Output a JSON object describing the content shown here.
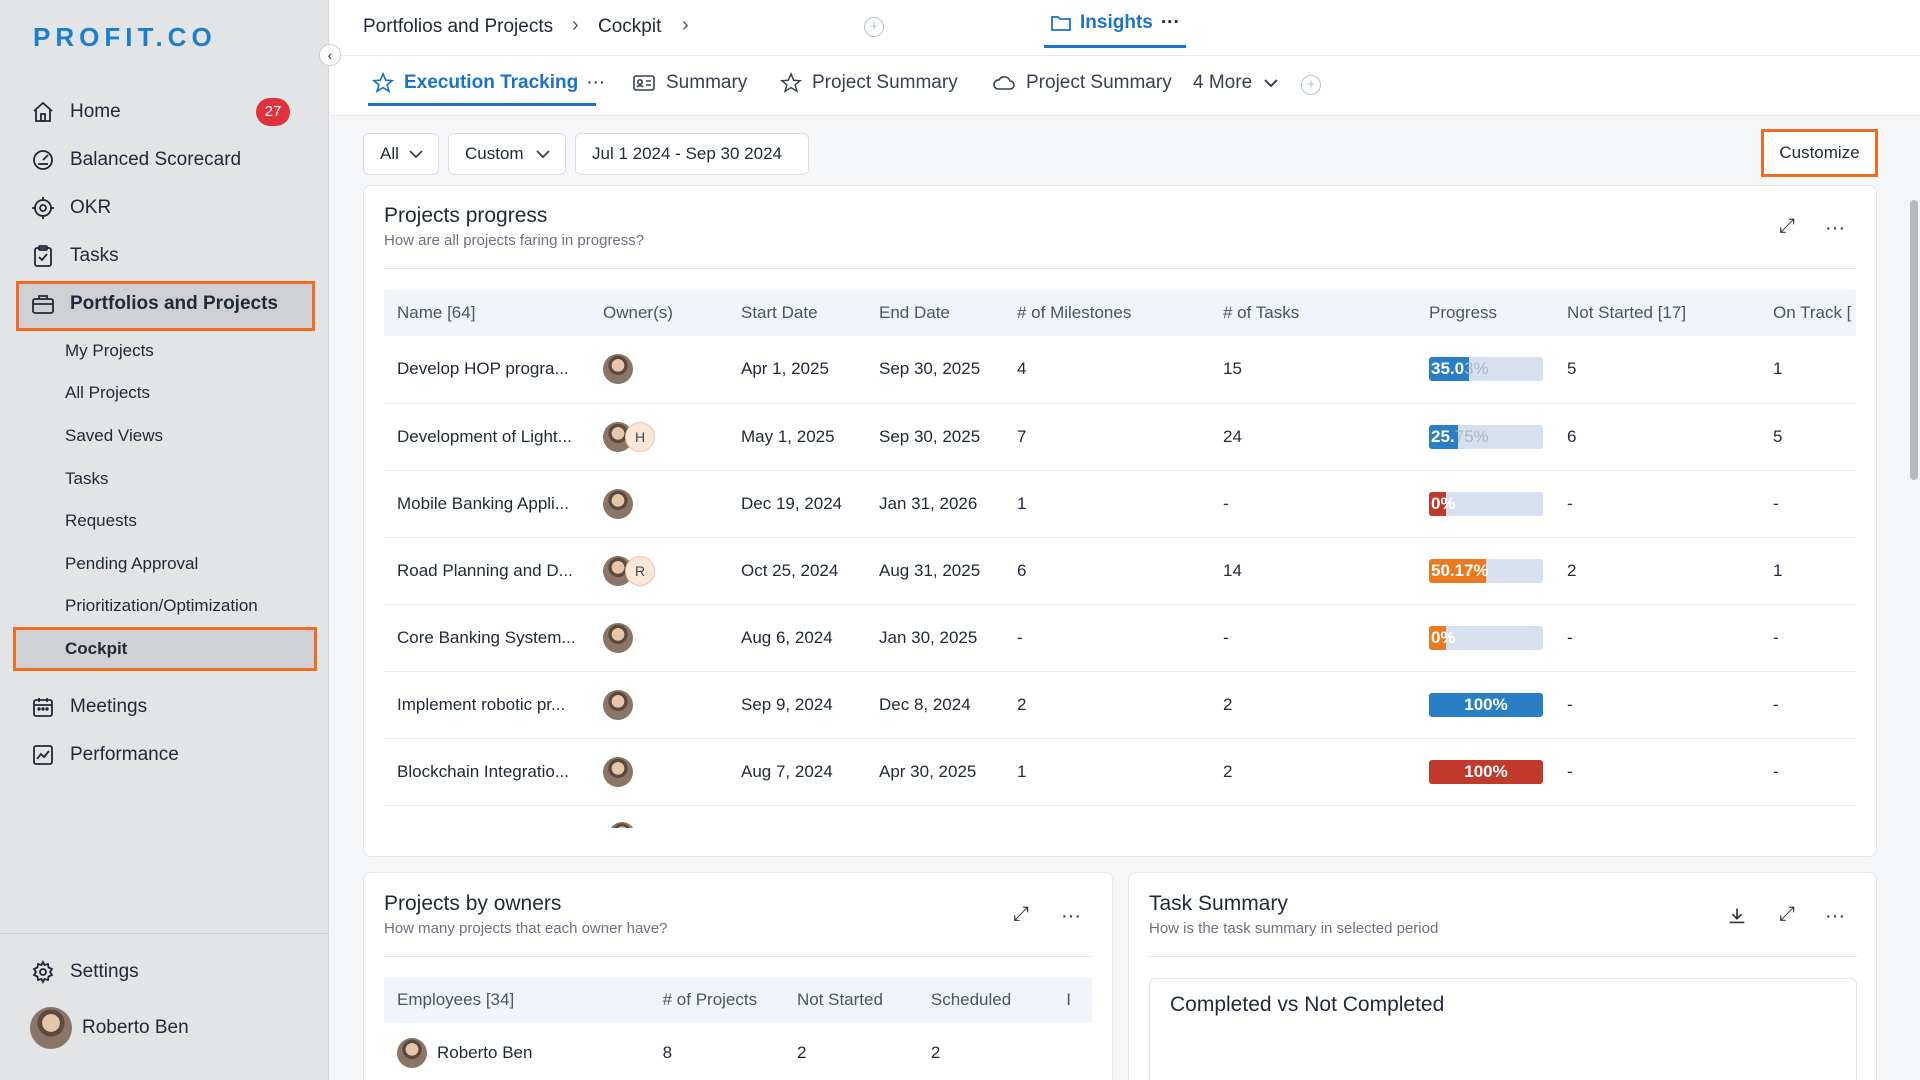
{
  "app": {
    "logo": "PROFIT.CO"
  },
  "sidebar": {
    "items": [
      {
        "label": "Home",
        "icon": "home-icon",
        "badge": "27"
      },
      {
        "label": "Balanced Scorecard",
        "icon": "scorecard-icon"
      },
      {
        "label": "OKR",
        "icon": "target-icon"
      },
      {
        "label": "Tasks",
        "icon": "clipboard-check-icon"
      },
      {
        "label": "Portfolios and Projects",
        "icon": "briefcase-icon"
      }
    ],
    "sub_items": [
      "My Projects",
      "All Projects",
      "Saved Views",
      "Tasks",
      "Requests",
      "Pending Approval",
      "Prioritization/Optimization",
      "Cockpit"
    ],
    "bottom_items": [
      {
        "label": "Meetings",
        "icon": "calendar-icon"
      },
      {
        "label": "Performance",
        "icon": "chart-line-icon"
      }
    ],
    "settings_label": "Settings",
    "user_name": "Roberto Ben",
    "collapse_glyph": "‹"
  },
  "breadcrumb": {
    "items": [
      "Portfolios and Projects",
      "Cockpit"
    ],
    "current": "Insights",
    "sep": "›",
    "more": "···"
  },
  "tabs": {
    "items": [
      {
        "label": "Execution Tracking",
        "icon": "star-icon",
        "active": true,
        "more": "···"
      },
      {
        "label": "Summary",
        "icon": "id-card-icon"
      },
      {
        "label": "Project Summary",
        "icon": "star-icon"
      },
      {
        "label": "Project Summary",
        "icon": "cloud-icon"
      }
    ],
    "more_label": "4 More"
  },
  "filters": {
    "all": "All",
    "custom": "Custom",
    "date_range": "Jul 1 2024 - Sep 30 2024",
    "customize": "Customize"
  },
  "projects_progress": {
    "title": "Projects progress",
    "subtitle": "How are all projects faring in progress?",
    "columns": [
      "Name [64]",
      "Owner(s)",
      "Start Date",
      "End Date",
      "# of Milestones",
      "# of Tasks",
      "Progress",
      "Not Started [17]",
      "On Track ["
    ],
    "rows": [
      {
        "name": "Develop HOP progra...",
        "owners": [],
        "start": "Apr 1, 2025",
        "end": "Sep 30, 2025",
        "milestones": "4",
        "tasks": "15",
        "progress_label": "35.0",
        "progress_ghost": "3%",
        "progress": 0.35,
        "color": "#2a7fc4",
        "not_started": "5",
        "on_track": "1"
      },
      {
        "name": "Development of Light...",
        "owners": [
          "H"
        ],
        "start": "May 1, 2025",
        "end": "Sep 30, 2025",
        "milestones": "7",
        "tasks": "24",
        "progress_label": "25.",
        "progress_ghost": "75%",
        "progress": 0.2575,
        "color": "#2a7fc4",
        "not_started": "6",
        "on_track": "5"
      },
      {
        "name": "Mobile Banking Appli...",
        "owners": [],
        "start": "Dec 19, 2024",
        "end": "Jan 31, 2026",
        "milestones": "1",
        "tasks": "-",
        "progress_label": "0%",
        "progress_ghost": "",
        "progress": 0.0,
        "color": "#c0392b",
        "not_started": "-",
        "on_track": "-"
      },
      {
        "name": "Road Planning and D...",
        "owners": [
          "R"
        ],
        "start": "Oct 25, 2024",
        "end": "Aug 31, 2025",
        "milestones": "6",
        "tasks": "14",
        "progress_label": "50.17%",
        "progress_ghost": "",
        "progress": 0.5017,
        "color": "#ea7a21",
        "not_started": "2",
        "on_track": "1"
      },
      {
        "name": "Core Banking System...",
        "owners": [],
        "start": "Aug 6, 2024",
        "end": "Jan 30, 2025",
        "milestones": "-",
        "tasks": "-",
        "progress_label": "0%",
        "progress_ghost": "",
        "progress": 0.0,
        "color": "#ea7a21",
        "not_started": "-",
        "on_track": "-"
      },
      {
        "name": "Implement robotic pr...",
        "owners": [],
        "start": "Sep 9, 2024",
        "end": "Dec 8, 2024",
        "milestones": "2",
        "tasks": "2",
        "progress_label": "100%",
        "progress_ghost": "",
        "progress": 1.0,
        "color": "#2a7fc4",
        "not_started": "-",
        "on_track": "-"
      },
      {
        "name": "Blockchain Integratio...",
        "owners": [],
        "start": "Aug 7, 2024",
        "end": "Apr 30, 2025",
        "milestones": "1",
        "tasks": "2",
        "progress_label": "100%",
        "progress_ghost": "",
        "progress": 1.0,
        "color": "#c0392b",
        "not_started": "-",
        "on_track": "-"
      }
    ]
  },
  "projects_by_owners": {
    "title": "Projects by owners",
    "subtitle": "How many projects that each owner have?",
    "columns": [
      "Employees [34]",
      "# of Projects",
      "Not Started",
      "Scheduled",
      "I"
    ],
    "rows": [
      {
        "name": "Roberto Ben",
        "projects": "8",
        "not_started": "2",
        "scheduled": "2"
      }
    ]
  },
  "task_summary": {
    "title": "Task Summary",
    "subtitle": "How is the task summary in selected period",
    "chart_title": "Completed vs Not Completed"
  },
  "glyphs": {
    "more": "···",
    "expand": "⤢",
    "chevron": "⌄",
    "plus": "+",
    "download": "⤓"
  }
}
